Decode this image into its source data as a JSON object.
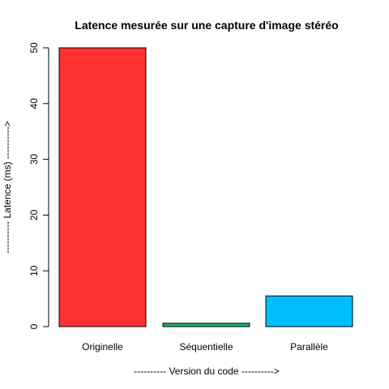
{
  "chart_data": {
    "type": "bar",
    "title": "Latence mesurée sur une capture d'image stéréo",
    "xlabel": "---------- Version du code ---------->",
    "ylabel": "---------- Latence (ms) ---------->",
    "categories": [
      "Originelle",
      "Séquentielle",
      "Parallèle"
    ],
    "values": [
      50,
      0.6,
      5.5
    ],
    "colors": [
      "#FF3030",
      "#1DB86A",
      "#00BFFF"
    ],
    "ylim": [
      0,
      50
    ],
    "yticks": [
      0,
      10,
      20,
      30,
      40,
      50
    ],
    "grid": false,
    "legend": "none"
  }
}
